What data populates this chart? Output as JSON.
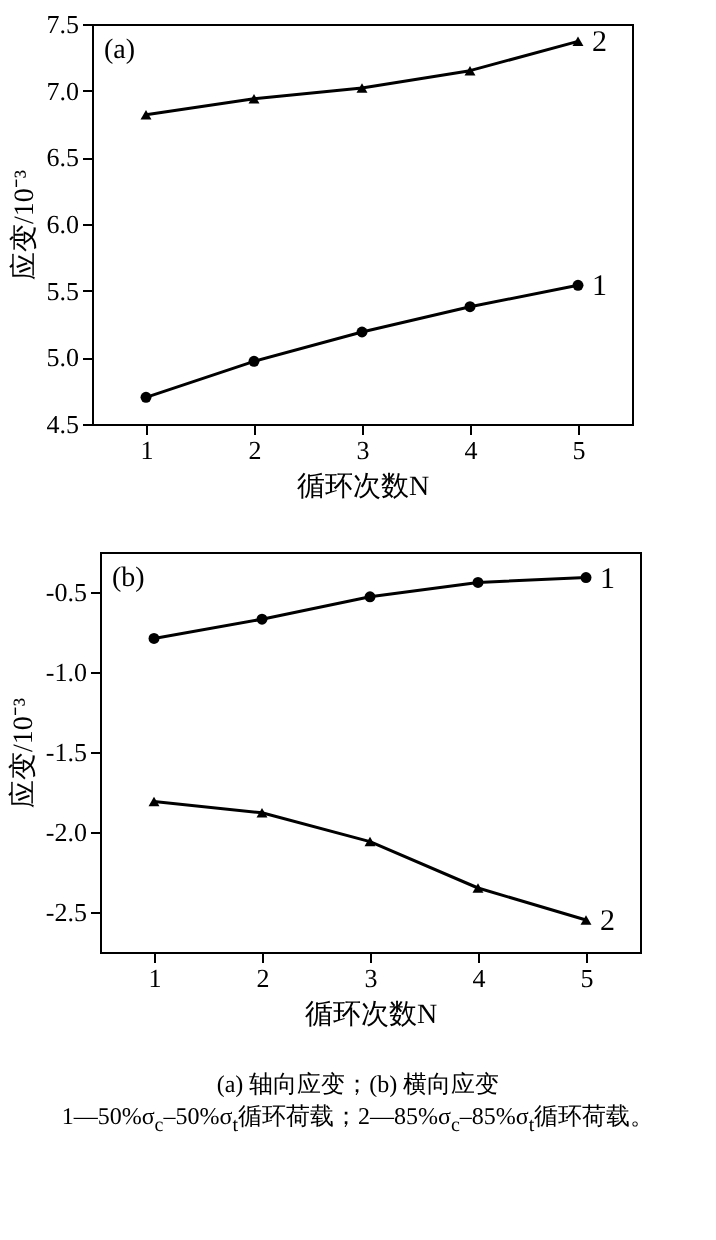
{
  "chart_data": [
    {
      "type": "line",
      "title": "(a)",
      "xlabel": "循环次数N",
      "ylabel": "应变/10⁻³",
      "x": [
        1,
        2,
        3,
        4,
        5
      ],
      "xlim": [
        0.5,
        5.5
      ],
      "xticks": [
        1,
        2,
        3,
        4,
        5
      ],
      "ylim": [
        4.5,
        7.5
      ],
      "yticks": [
        4.5,
        {
          "value": 5,
          "label": "5.0"
        },
        5.5,
        {
          "value": 6,
          "label": "6.0"
        },
        6.5,
        {
          "value": 7,
          "label": "7.0"
        },
        7.5
      ],
      "series": [
        {
          "name": "1",
          "color": "#000000",
          "marker": "circle",
          "values": [
            4.7,
            4.97,
            5.19,
            5.38,
            5.54
          ]
        },
        {
          "name": "2",
          "color": "#000000",
          "marker": "triangle",
          "values": [
            6.82,
            6.94,
            7.02,
            7.15,
            7.37
          ]
        }
      ]
    },
    {
      "type": "line",
      "title": "(b)",
      "xlabel": "循环次数N",
      "ylabel": "应变/10⁻³",
      "x": [
        1,
        2,
        3,
        4,
        5
      ],
      "xlim": [
        0.5,
        5.5
      ],
      "xticks": [
        1,
        2,
        3,
        4,
        5
      ],
      "ylim": [
        -2.75,
        -0.25
      ],
      "yticks": [
        -2.5,
        {
          "value": -2,
          "label": "-2.0"
        },
        -1.5,
        {
          "value": -1,
          "label": "-1.0"
        },
        -0.5
      ],
      "series": [
        {
          "name": "1",
          "color": "#000000",
          "marker": "circle",
          "values": [
            -0.79,
            -0.67,
            -0.53,
            -0.44,
            -0.41
          ]
        },
        {
          "name": "2",
          "color": "#000000",
          "marker": "triangle",
          "values": [
            -1.81,
            -1.88,
            -2.06,
            -2.35,
            -2.55
          ]
        }
      ],
      "annotations": [
        "(a) 轴向应变；(b) 横向应变",
        "1—50%σ$_{c}$–50%σ$_{t}$循环荷载；2—85%σ$_{c}$–85%σ$_{t}$循环荷载。"
      ]
    }
  ]
}
